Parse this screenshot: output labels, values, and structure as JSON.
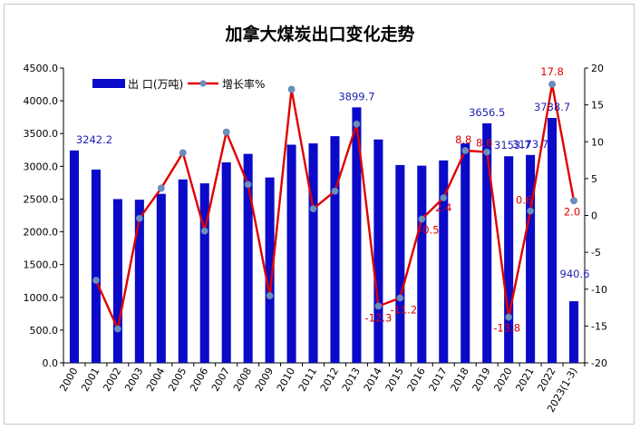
{
  "chart_data": {
    "type": "bar+line",
    "title": "加拿大煤炭出口变化走势",
    "categories": [
      "2000",
      "2001",
      "2002",
      "2003",
      "2004",
      "2005",
      "2006",
      "2007",
      "2008",
      "2009",
      "2010",
      "2011",
      "2012",
      "2013",
      "2014",
      "2015",
      "2016",
      "2017",
      "2018",
      "2019",
      "2020",
      "2021",
      "2022",
      "2023(1-3)"
    ],
    "series": [
      {
        "name": "出 口(万吨)",
        "type": "bar",
        "axis": "left",
        "color": "#0a0ac8",
        "values": [
          3242.2,
          2950,
          2500,
          2490,
          2580,
          2800,
          2740,
          3060,
          3190,
          2830,
          3330,
          3350,
          3460,
          3899.7,
          3410,
          3020,
          3010,
          3090,
          3350,
          3656.5,
          3153.7,
          3173.7,
          3738.7,
          940.6
        ]
      },
      {
        "name": "增长率%",
        "type": "line",
        "axis": "right",
        "color": "#e00000",
        "marker_color": "#6a8fc0",
        "values": [
          null,
          -8.8,
          -15.4,
          -0.4,
          3.7,
          8.5,
          -2.1,
          11.3,
          4.2,
          -10.9,
          17.1,
          0.9,
          3.3,
          12.4,
          -12.3,
          -11.2,
          -0.5,
          2.4,
          8.8,
          8.6,
          -13.8,
          0.6,
          17.8,
          2.0
        ]
      }
    ],
    "bar_labels": [
      {
        "index": 0,
        "text": "3242.2"
      },
      {
        "index": 13,
        "text": "3899.7"
      },
      {
        "index": 19,
        "text": "3656.5"
      },
      {
        "index": 20,
        "text": "3153.7"
      },
      {
        "index": 21,
        "text": "3173.7"
      },
      {
        "index": 22,
        "text": "3738.7"
      },
      {
        "index": 23,
        "text": "940.6"
      }
    ],
    "line_labels": [
      {
        "index": 14,
        "text": "-12.3"
      },
      {
        "index": 15,
        "text": "-11.2"
      },
      {
        "index": 16,
        "text": "-0.5"
      },
      {
        "index": 17,
        "text": "2.4"
      },
      {
        "index": 18,
        "text": "8.8"
      },
      {
        "index": 19,
        "text": "8.6"
      },
      {
        "index": 20,
        "text": "-13.8"
      },
      {
        "index": 21,
        "text": "0.6"
      },
      {
        "index": 22,
        "text": "17.8"
      },
      {
        "index": 23,
        "text": "2.0"
      }
    ],
    "y_left": {
      "min": 0,
      "max": 4500,
      "step": 500,
      "ticks": [
        "0.0",
        "500.0",
        "1000.0",
        "1500.0",
        "2000.0",
        "2500.0",
        "3000.0",
        "3500.0",
        "4000.0",
        "4500.0"
      ]
    },
    "y_right": {
      "min": -20,
      "max": 20,
      "step": 5,
      "ticks": [
        "-20",
        "-15",
        "-10",
        "-5",
        "0",
        "5",
        "10",
        "15",
        "20"
      ]
    },
    "grid": false,
    "legend_position": "top-left"
  }
}
